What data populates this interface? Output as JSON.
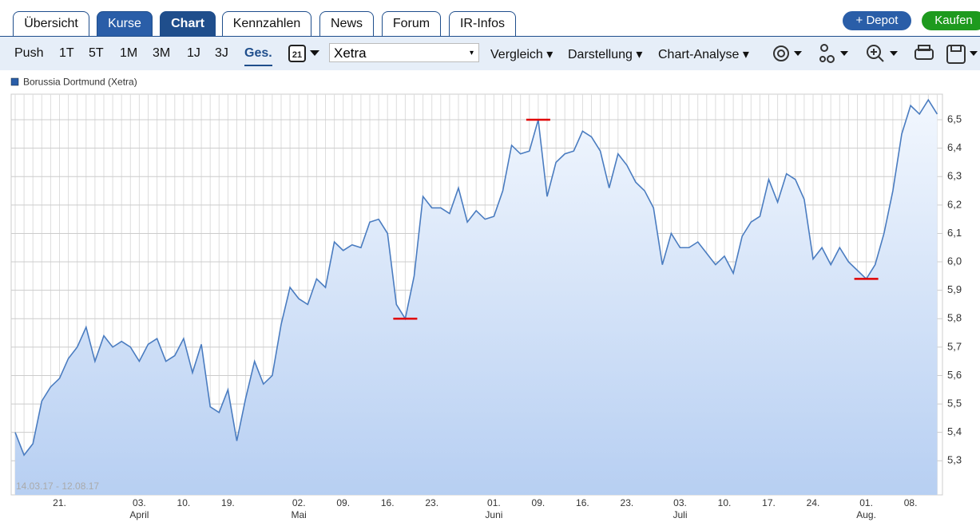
{
  "tabs": [
    "Übersicht",
    "Kurse",
    "Chart",
    "Kennzahlen",
    "News",
    "Forum",
    "IR-Infos"
  ],
  "buttons": [
    "+ Depot",
    "Kaufen"
  ],
  "ranges": [
    "Push",
    "1T",
    "5T",
    "1M",
    "3M",
    "1J",
    "3J",
    "Ges."
  ],
  "calendar_day": "21",
  "exchange": "Xetra",
  "menus": [
    "Vergleich",
    "Darstellung",
    "Chart-Analyse"
  ],
  "chart_data": {
    "type": "line",
    "date_range": "14.03.17 - 12.08.17",
    "categories": [
      null,
      null,
      null,
      null,
      null,
      "21.",
      null,
      null,
      null,
      null,
      null,
      null,
      null,
      null,
      "03.",
      null,
      null,
      null,
      null,
      "10.",
      null,
      null,
      null,
      null,
      "19.",
      null,
      null,
      null,
      null,
      null,
      null,
      null,
      "02.",
      null,
      null,
      null,
      null,
      "09.",
      null,
      null,
      null,
      null,
      "16.",
      null,
      null,
      null,
      null,
      "23.",
      null,
      null,
      null,
      null,
      null,
      null,
      "01.",
      null,
      null,
      null,
      null,
      "09.",
      null,
      null,
      null,
      null,
      "16.",
      null,
      null,
      null,
      null,
      "23.",
      null,
      null,
      null,
      null,
      null,
      "03.",
      null,
      null,
      null,
      null,
      "10.",
      null,
      null,
      null,
      null,
      "17.",
      null,
      null,
      null,
      null,
      "24.",
      null,
      null,
      null,
      null,
      null,
      "01.",
      null,
      null,
      null,
      null,
      "08.",
      null,
      null,
      null
    ],
    "months": [
      null,
      null,
      null,
      null,
      null,
      null,
      null,
      null,
      null,
      null,
      null,
      null,
      null,
      null,
      "April",
      null,
      null,
      null,
      null,
      null,
      null,
      null,
      null,
      null,
      null,
      null,
      null,
      null,
      null,
      null,
      null,
      null,
      "Mai",
      null,
      null,
      null,
      null,
      null,
      null,
      null,
      null,
      null,
      null,
      null,
      null,
      null,
      null,
      null,
      null,
      null,
      null,
      null,
      null,
      null,
      "Juni",
      null,
      null,
      null,
      null,
      null,
      null,
      null,
      null,
      null,
      null,
      null,
      null,
      null,
      null,
      null,
      null,
      null,
      null,
      null,
      null,
      "Juli",
      null,
      null,
      null,
      null,
      null,
      null,
      null,
      null,
      null,
      null,
      null,
      null,
      null,
      null,
      null,
      null,
      null,
      null,
      null,
      null,
      "Aug.",
      null,
      null,
      null,
      null,
      null,
      null,
      null,
      null
    ],
    "series": [
      {
        "name": "Borussia Dortmund (Xetra)",
        "color": "#4a7cc0",
        "values": [
          5.4,
          5.32,
          5.36,
          5.51,
          5.56,
          5.59,
          5.66,
          5.7,
          5.77,
          5.65,
          5.74,
          5.7,
          5.72,
          5.7,
          5.65,
          5.71,
          5.73,
          5.65,
          5.67,
          5.73,
          5.61,
          5.71,
          5.49,
          5.47,
          5.55,
          5.37,
          5.52,
          5.65,
          5.57,
          5.6,
          5.78,
          5.91,
          5.87,
          5.85,
          5.94,
          5.91,
          6.07,
          6.04,
          6.06,
          6.05,
          6.14,
          6.15,
          6.1,
          5.85,
          5.8,
          5.95,
          6.23,
          6.19,
          6.19,
          6.17,
          6.26,
          6.14,
          6.18,
          6.15,
          6.16,
          6.25,
          6.41,
          6.38,
          6.39,
          6.5,
          6.23,
          6.35,
          6.38,
          6.39,
          6.46,
          6.44,
          6.39,
          6.26,
          6.38,
          6.34,
          6.28,
          6.25,
          6.19,
          5.99,
          6.1,
          6.05,
          6.05,
          6.07,
          6.03,
          5.99,
          6.02,
          5.96,
          6.09,
          6.14,
          6.16,
          6.29,
          6.21,
          6.31,
          6.29,
          6.22,
          6.01,
          6.05,
          5.99,
          6.05,
          6.0,
          5.97,
          5.94,
          5.99,
          6.1,
          6.25,
          6.45,
          6.55,
          6.52,
          6.57,
          6.52
        ]
      }
    ],
    "marked_points": [
      44,
      59,
      96
    ],
    "marker_color": "#e00000",
    "ylim": [
      5.18,
      6.59
    ],
    "yticks": [
      {
        "value": 5.3,
        "label": "5,3"
      },
      {
        "value": 5.4,
        "label": "5,4"
      },
      {
        "value": 5.5,
        "label": "5,5"
      },
      {
        "value": 5.6,
        "label": "5,6"
      },
      {
        "value": 5.7,
        "label": "5,7"
      },
      {
        "value": 5.8,
        "label": "5,8"
      },
      {
        "value": 5.9,
        "label": "5,9"
      },
      {
        "value": 6.0,
        "label": "6,0"
      },
      {
        "value": 6.1,
        "label": "6,1"
      },
      {
        "value": 6.2,
        "label": "6,2"
      },
      {
        "value": 6.3,
        "label": "6,3"
      },
      {
        "value": 6.4,
        "label": "6,4"
      },
      {
        "value": 6.5,
        "label": "6,5"
      }
    ],
    "grid": true
  }
}
